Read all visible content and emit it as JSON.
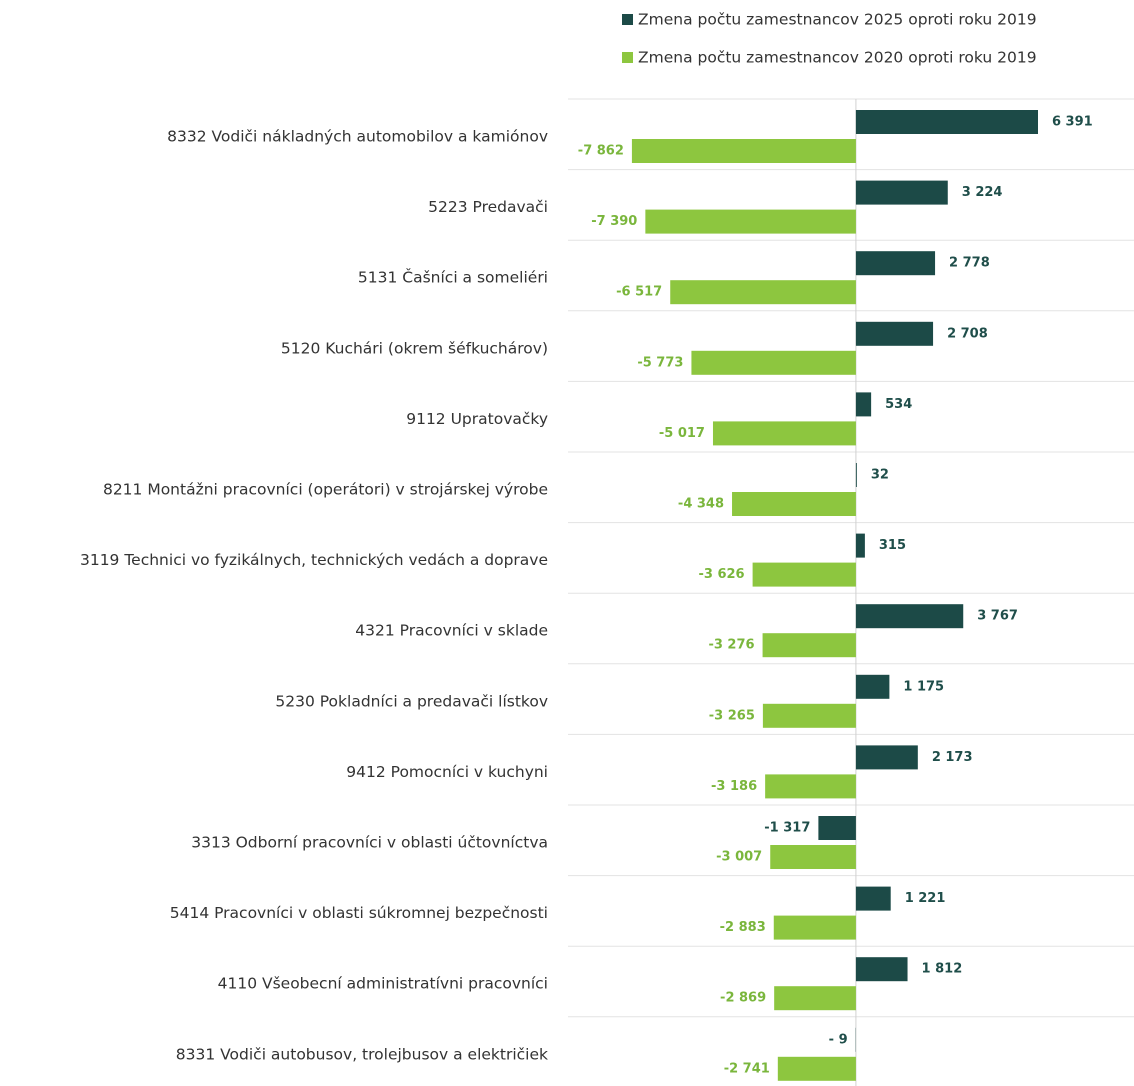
{
  "chart_data": {
    "type": "hbar",
    "categories": [
      "8332 Vodiči nákladných automobilov a kamiónov",
      "5223 Predavači",
      "5131 Čašníci a someliéri",
      "5120 Kuchári (okrem šéfkuchárov)",
      "9112 Upratovačky",
      "8211 Montážni pracovníci (operátori) v strojárskej výrobe",
      "3119 Technici vo fyzikálnych, technických vedách a doprave",
      "4321 Pracovníci v sklade",
      "5230 Pokladníci a predavači lístkov",
      "9412 Pomocníci v kuchyni",
      "3313 Odborní pracovníci v oblasti účtovníctva",
      "5414 Pracovníci v oblasti súkromnej bezpečnosti",
      "4110 Všeobecní administratívni pracovníci",
      "8331 Vodiči autobusov, trolejbusov a električiek"
    ],
    "series": [
      {
        "name": "Zmena počtu zamestnancov 2025 oproti roku 2019",
        "color": "#1c4a47",
        "values": [
          6391,
          3224,
          2778,
          2708,
          534,
          32,
          315,
          3767,
          1175,
          2173,
          -1317,
          1221,
          1812,
          -9
        ],
        "value_labels": [
          "6 391",
          "3 224",
          "2 778",
          "2 708",
          "534",
          "32",
          "315",
          "3 767",
          "1 175",
          "2 173",
          "-1 317",
          "1 221",
          "1 812",
          "- 9"
        ]
      },
      {
        "name": "Zmena počtu zamestnancov 2020 oproti roku 2019",
        "color": "#8dc63f",
        "values": [
          -7862,
          -7390,
          -6517,
          -5773,
          -5017,
          -4348,
          -3626,
          -3276,
          -3265,
          -3186,
          -3007,
          -2883,
          -2869,
          -2741
        ],
        "value_labels": [
          "-7 862",
          "-7 390",
          "-6 517",
          "-5 773",
          "-5 017",
          "-4 348",
          "-3 626",
          "-3 276",
          "-3 265",
          "-3 186",
          "-3 007",
          "-2 883",
          "-2 869",
          "-2 741"
        ]
      }
    ],
    "xlim": [
      -10000,
      9750
    ]
  }
}
